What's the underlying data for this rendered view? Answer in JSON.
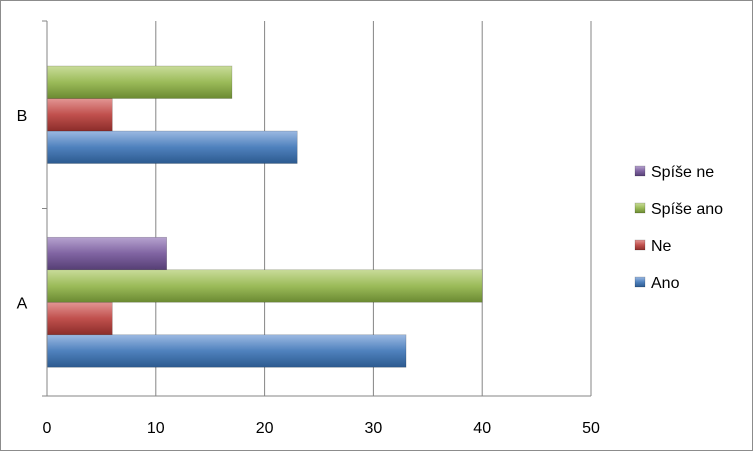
{
  "chart_data": {
    "type": "bar",
    "orientation": "horizontal",
    "categories": [
      "A",
      "B"
    ],
    "series": [
      {
        "name": "Ano",
        "color": "#4f81bd",
        "values": [
          33,
          23
        ]
      },
      {
        "name": "Ne",
        "color": "#c0504d",
        "values": [
          6,
          6
        ]
      },
      {
        "name": "Spíše ano",
        "color": "#9bbb59",
        "values": [
          40,
          17
        ]
      },
      {
        "name": "Spíše ne",
        "color": "#8064a2",
        "values": [
          11,
          0
        ]
      }
    ],
    "xlim": [
      0,
      50
    ],
    "xticks": [
      "0",
      "10",
      "20",
      "30",
      "40",
      "50"
    ],
    "grid": true,
    "legend_position": "right",
    "title": "",
    "xlabel": "",
    "ylabel": ""
  }
}
